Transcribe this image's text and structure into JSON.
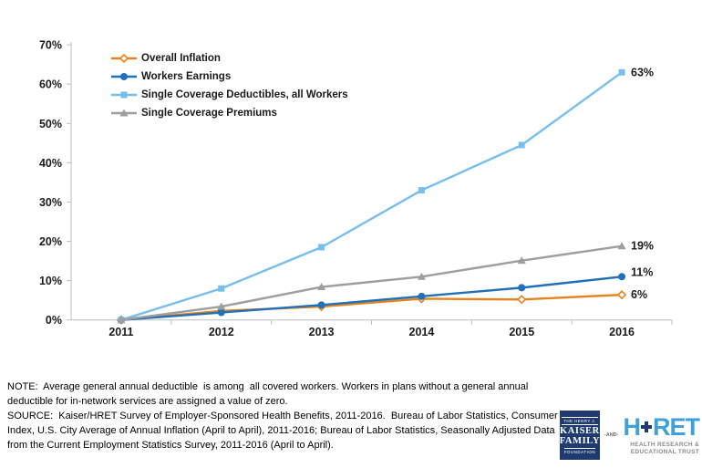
{
  "chart_data": {
    "type": "line",
    "title": "",
    "xlabel": "",
    "ylabel": "",
    "categories": [
      "2011",
      "2012",
      "2013",
      "2014",
      "2015",
      "2016"
    ],
    "series": [
      {
        "name": "Overall Inflation",
        "color": "#e8821f",
        "marker": "diamond",
        "values": [
          0,
          2.3,
          3.4,
          5.4,
          5.2,
          6.4
        ],
        "end_label": "6%",
        "label_dy": 0
      },
      {
        "name": "Workers Earnings",
        "color": "#2171b8",
        "marker": "circle",
        "values": [
          0,
          1.9,
          3.8,
          6.0,
          8.2,
          11.0
        ],
        "end_label": "11%",
        "label_dy": -5
      },
      {
        "name": "Single Coverage Deductibles, all Workers",
        "color": "#76bfee",
        "marker": "square",
        "values": [
          0,
          8.0,
          18.5,
          33.0,
          44.5,
          63.0
        ],
        "end_label": "63%",
        "label_dy": 0
      },
      {
        "name": "Single Coverage Premiums",
        "color": "#9e9e9e",
        "marker": "triangle",
        "values": [
          0,
          3.4,
          8.4,
          11.0,
          15.1,
          18.8
        ],
        "end_label": "19%",
        "label_dy": 0
      }
    ],
    "ylim": [
      0,
      70
    ],
    "y_tick_labels": [
      "0%",
      "10%",
      "20%",
      "30%",
      "40%",
      "50%",
      "60%",
      "70%"
    ],
    "grid": false,
    "legend_position": "top-left",
    "axis_color": "#bfbfbf",
    "tick_label_color": "#1a1a1a",
    "end_label_color": "#1a1a1a"
  },
  "footer": {
    "note_lines": [
      "NOTE:  Average general annual deductible  is among  all covered workers. Workers in plans without a general annual",
      "deductible for in-network services are assigned a value of zero."
    ],
    "source_lines": [
      "SOURCE:  Kaiser/HRET Survey of Employer-Sponsored Health Benefits, 2011-2016.  Bureau of Labor Statistics, Consumer Price",
      "Index, U.S. City Average of Annual Inflation (April to April), 2011-2016; Bureau of Labor Statistics, Seasonally Adjusted Data",
      "from the Current Employment Statistics Survey, 2011-2016 (April to April)."
    ]
  },
  "logos": {
    "kaiser": {
      "line1": "THE HENRY J.",
      "line2": "KAISER",
      "line3": "FAMILY",
      "line4": "FOUNDATION",
      "navy": "#1e3a6e"
    },
    "and_label": "-AND-",
    "hret": {
      "left": "H",
      "right": "RET",
      "cross_icon": "plus-cross",
      "blue": "#3fa1dc",
      "subtitle_line1": "HEALTH RESEARCH &",
      "subtitle_line2": "EDUCATIONAL TRUST"
    }
  }
}
